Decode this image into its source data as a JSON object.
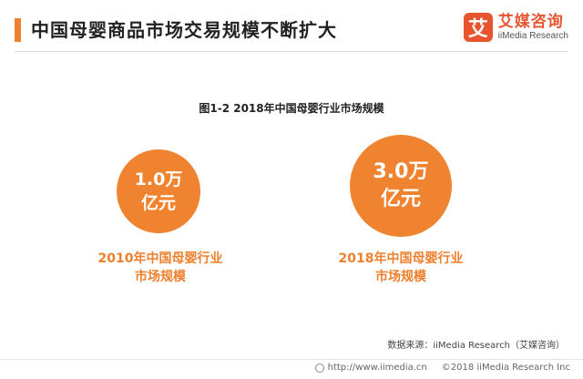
{
  "header": {
    "title": "中国母婴商品市场交易规模不断扩大",
    "accent_color": "#f07f2e"
  },
  "logo": {
    "mark": "艾",
    "name_cn": "艾媒咨询",
    "name_en": "iiMedia Research",
    "color": "#e8542e"
  },
  "figure": {
    "title": "图1-2 2018年中国母婴行业市场规模"
  },
  "stats": [
    {
      "value_line1": "1.0万",
      "value_line2": "亿元",
      "label_line1": "2010年中国母婴行业",
      "label_line2": "市场规模",
      "color": "#f0832f"
    },
    {
      "value_line1": "3.0万",
      "value_line2": "亿元",
      "label_line1": "2018年中国母婴行业",
      "label_line2": "市场规模",
      "color": "#f0832f"
    }
  ],
  "source": "数据来源：iiMedia Research（艾媒咨询）",
  "footer": {
    "url": "http://www.iimedia.cn",
    "copyright": "©2018  iiMedia Research Inc"
  }
}
